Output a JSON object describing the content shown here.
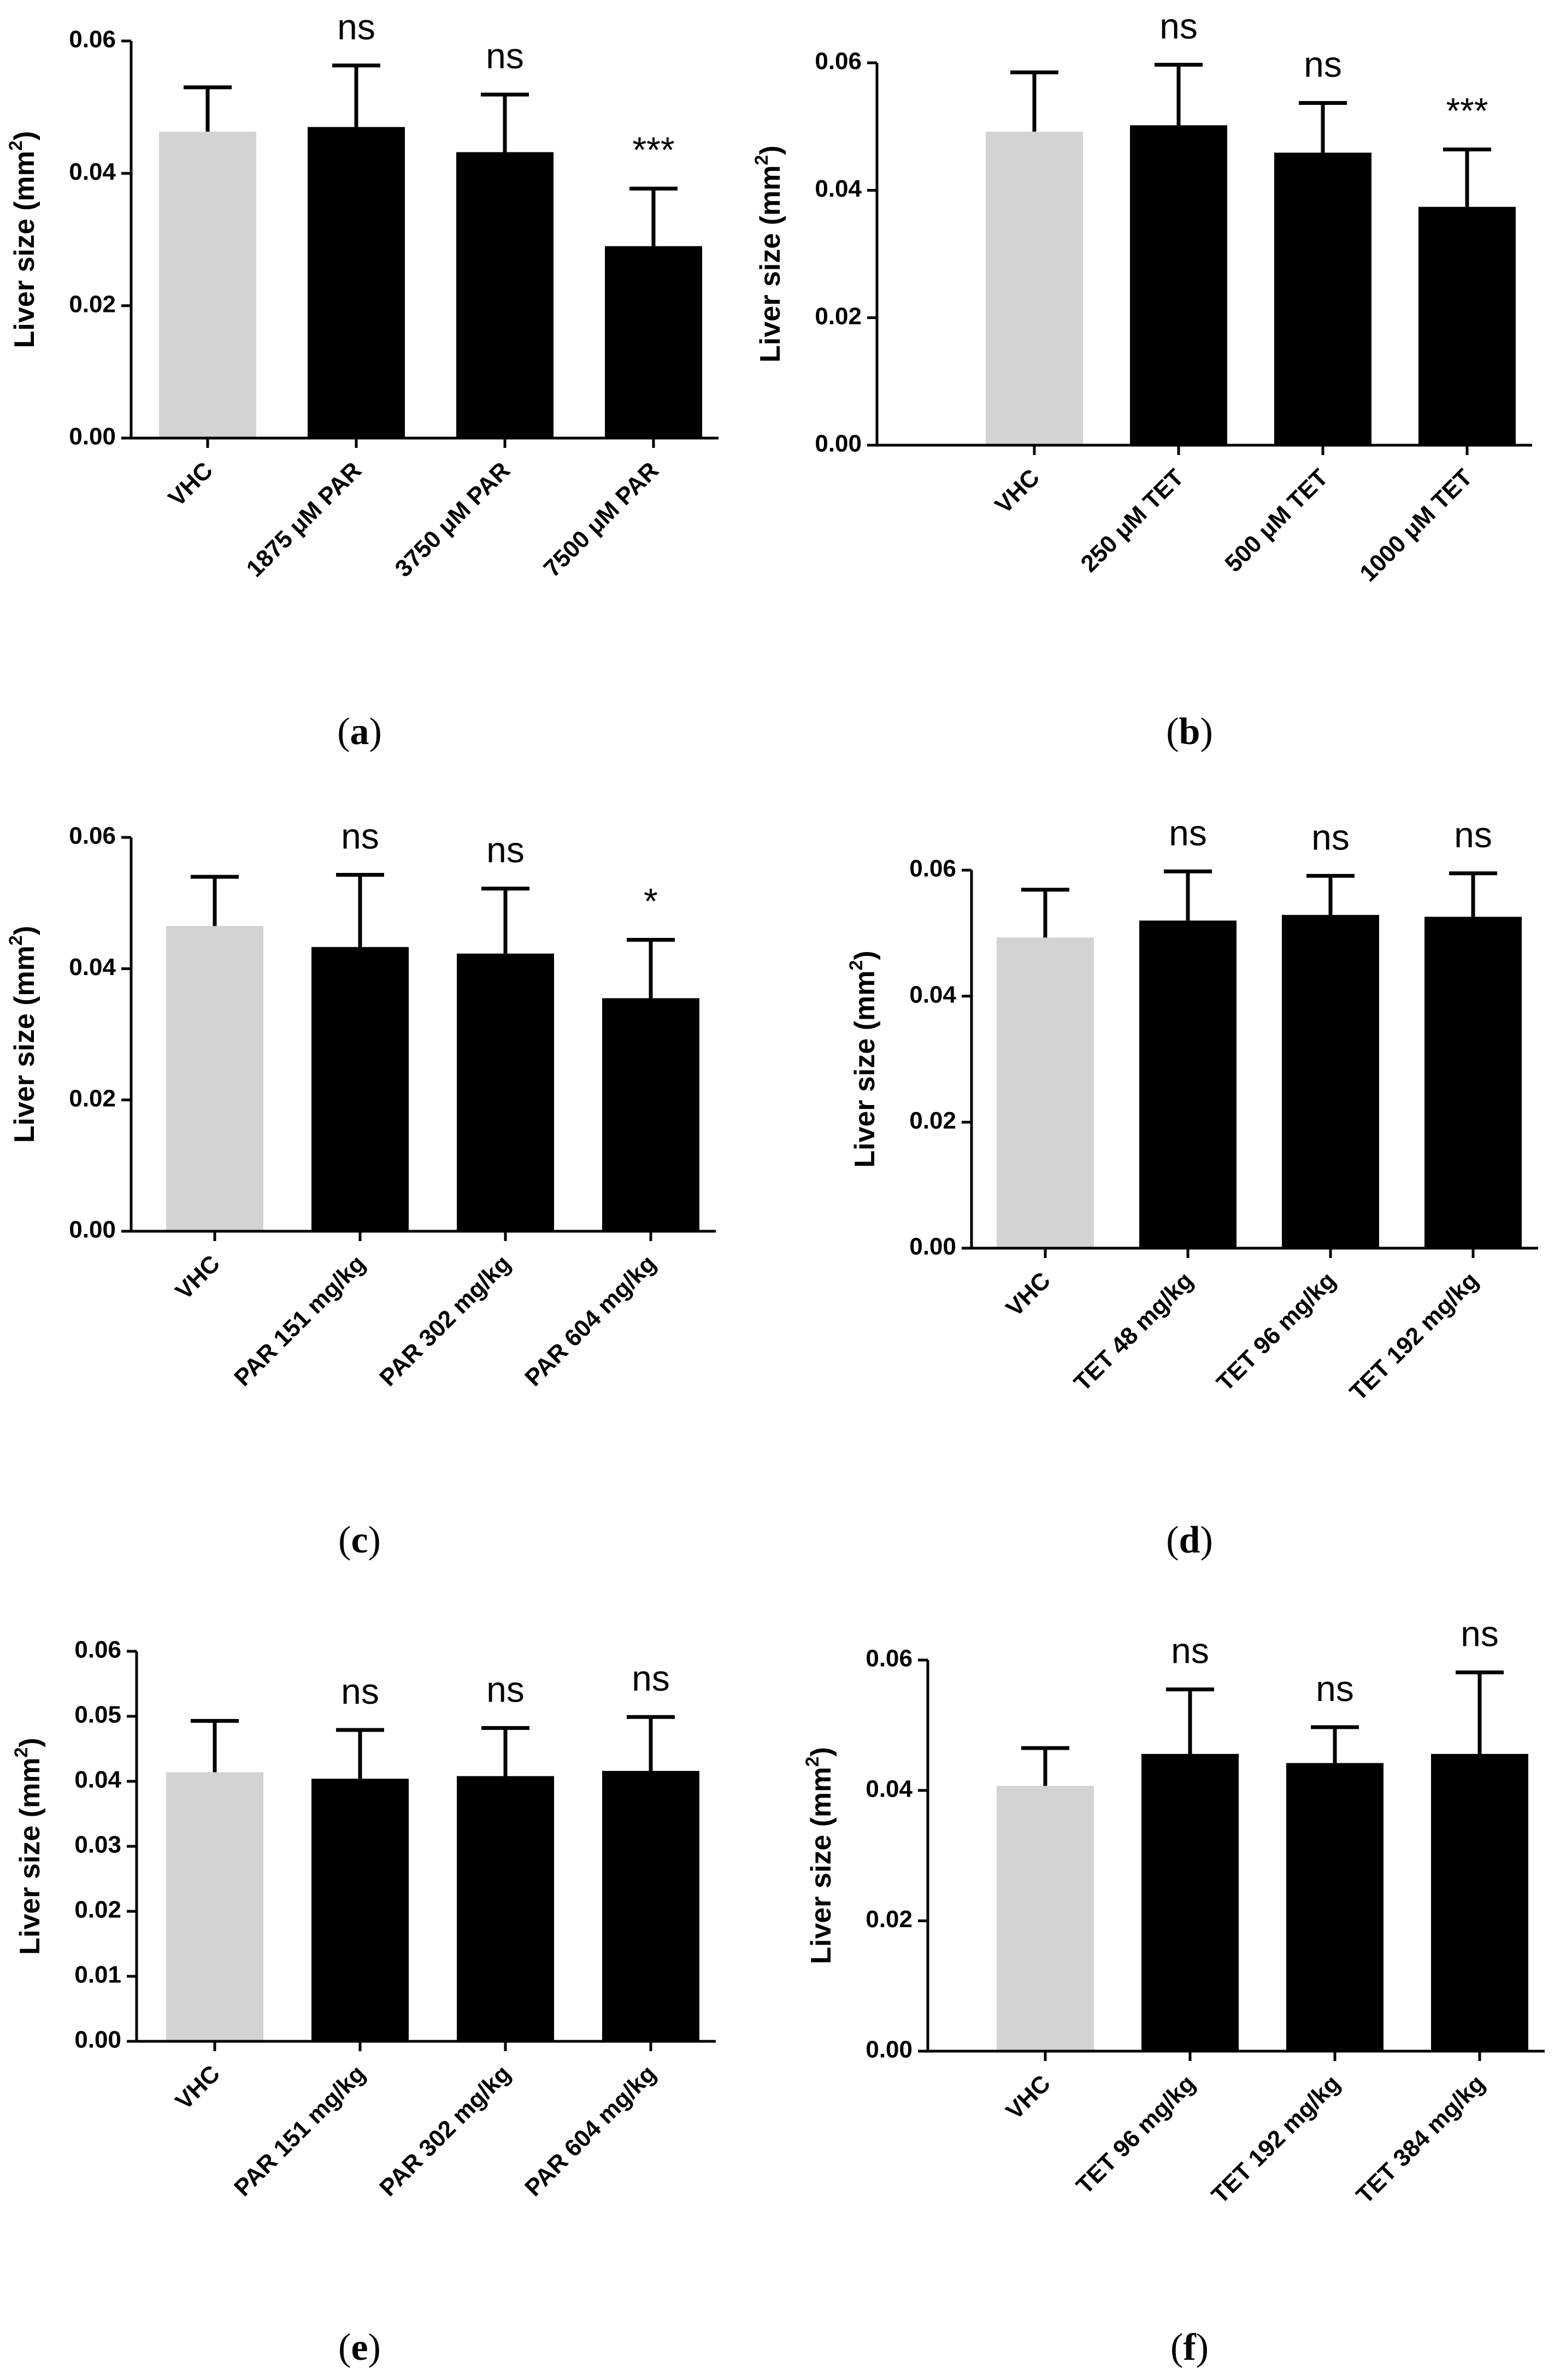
{
  "chart_data": [
    {
      "type": "bar",
      "panel_label": "a",
      "ylabel": "Liver size (mm",
      "ylabel_sup": "2",
      "ylabel_tail": ")",
      "ylim": [
        0,
        0.06
      ],
      "yticks": [
        "0.00",
        "0.02",
        "0.04",
        "0.06"
      ],
      "categories": [
        "VHC",
        "1875 μM PAR",
        "3750 μM PAR",
        "7500 μM PAR"
      ],
      "values": [
        0.0463,
        0.047,
        0.0432,
        0.029
      ],
      "errors": [
        0.0067,
        0.0093,
        0.0087,
        0.0087
      ],
      "significance": [
        "",
        "ns",
        "ns",
        "***"
      ],
      "bar_colors": [
        "#d3d3d3",
        "#000000",
        "#000000",
        "#000000"
      ]
    },
    {
      "type": "bar",
      "panel_label": "b",
      "ylabel": "Liver size (mm",
      "ylabel_sup": "2",
      "ylabel_tail": ")",
      "ylim": [
        0,
        0.06
      ],
      "yticks": [
        "0.00",
        "0.02",
        "0.04",
        "0.06"
      ],
      "categories": [
        "VHC",
        "250 μM TET",
        "500 μM TET",
        "1000 μM TET"
      ],
      "values": [
        0.0492,
        0.0502,
        0.0459,
        0.0374
      ],
      "errors": [
        0.0093,
        0.0095,
        0.0078,
        0.009
      ],
      "significance": [
        "",
        "ns",
        "ns",
        "***"
      ],
      "bar_colors": [
        "#d3d3d3",
        "#000000",
        "#000000",
        "#000000"
      ]
    },
    {
      "type": "bar",
      "panel_label": "c",
      "ylabel": "Liver size (mm",
      "ylabel_sup": "2",
      "ylabel_tail": ")",
      "ylim": [
        0,
        0.06
      ],
      "yticks": [
        "0.00",
        "0.02",
        "0.04",
        "0.06"
      ],
      "categories": [
        "VHC",
        "PAR 151 mg/kg",
        "PAR 302 mg/kg",
        "PAR 604 mg/kg"
      ],
      "values": [
        0.0465,
        0.0433,
        0.0423,
        0.0355
      ],
      "errors": [
        0.0075,
        0.011,
        0.0099,
        0.0089
      ],
      "significance": [
        "",
        "ns",
        "ns",
        "*"
      ],
      "bar_colors": [
        "#d3d3d3",
        "#000000",
        "#000000",
        "#000000"
      ]
    },
    {
      "type": "bar",
      "panel_label": "d",
      "ylabel": "Liver size (mm",
      "ylabel_sup": "2",
      "ylabel_tail": ")",
      "ylim": [
        0,
        0.06
      ],
      "yticks": [
        "0.00",
        "0.02",
        "0.04",
        "0.06"
      ],
      "categories": [
        "VHC",
        "TET 48 mg/kg",
        "TET 96 mg/kg",
        "TET 192 mg/kg"
      ],
      "values": [
        0.0493,
        0.052,
        0.0529,
        0.0526
      ],
      "errors": [
        0.0076,
        0.0078,
        0.0062,
        0.0069
      ],
      "significance": [
        "",
        "ns",
        "ns",
        "ns"
      ],
      "bar_colors": [
        "#d3d3d3",
        "#000000",
        "#000000",
        "#000000"
      ]
    },
    {
      "type": "bar",
      "panel_label": "e",
      "ylabel": "Liver size (mm",
      "ylabel_sup": "2",
      "ylabel_tail": ")",
      "ylim": [
        0,
        0.06
      ],
      "yticks": [
        "0.00",
        "0.01",
        "0.02",
        "0.03",
        "0.04",
        "0.05",
        "0.06"
      ],
      "categories": [
        "VHC",
        "PAR 151 mg/kg",
        "PAR 302 mg/kg",
        "PAR 604 mg/kg"
      ],
      "values": [
        0.0414,
        0.0404,
        0.0408,
        0.0416
      ],
      "errors": [
        0.0079,
        0.0075,
        0.0074,
        0.0083
      ],
      "significance": [
        "",
        "ns",
        "ns",
        "ns"
      ],
      "bar_colors": [
        "#d3d3d3",
        "#000000",
        "#000000",
        "#000000"
      ]
    },
    {
      "type": "bar",
      "panel_label": "f",
      "ylabel": "Liver size (mm",
      "ylabel_sup": "2",
      "ylabel_tail": ")",
      "ylim": [
        0,
        0.06
      ],
      "yticks": [
        "0.00",
        "0.02",
        "0.04",
        "0.06"
      ],
      "categories": [
        "VHC",
        "TET 96 mg/kg",
        "TET 192 mg/kg",
        "TET 384 mg/kg"
      ],
      "values": [
        0.0407,
        0.0456,
        0.0442,
        0.0456
      ],
      "errors": [
        0.0058,
        0.0099,
        0.0055,
        0.0125
      ],
      "significance": [
        "",
        "ns",
        "ns",
        "ns"
      ],
      "bar_colors": [
        "#d3d3d3",
        "#000000",
        "#000000",
        "#000000"
      ]
    }
  ]
}
